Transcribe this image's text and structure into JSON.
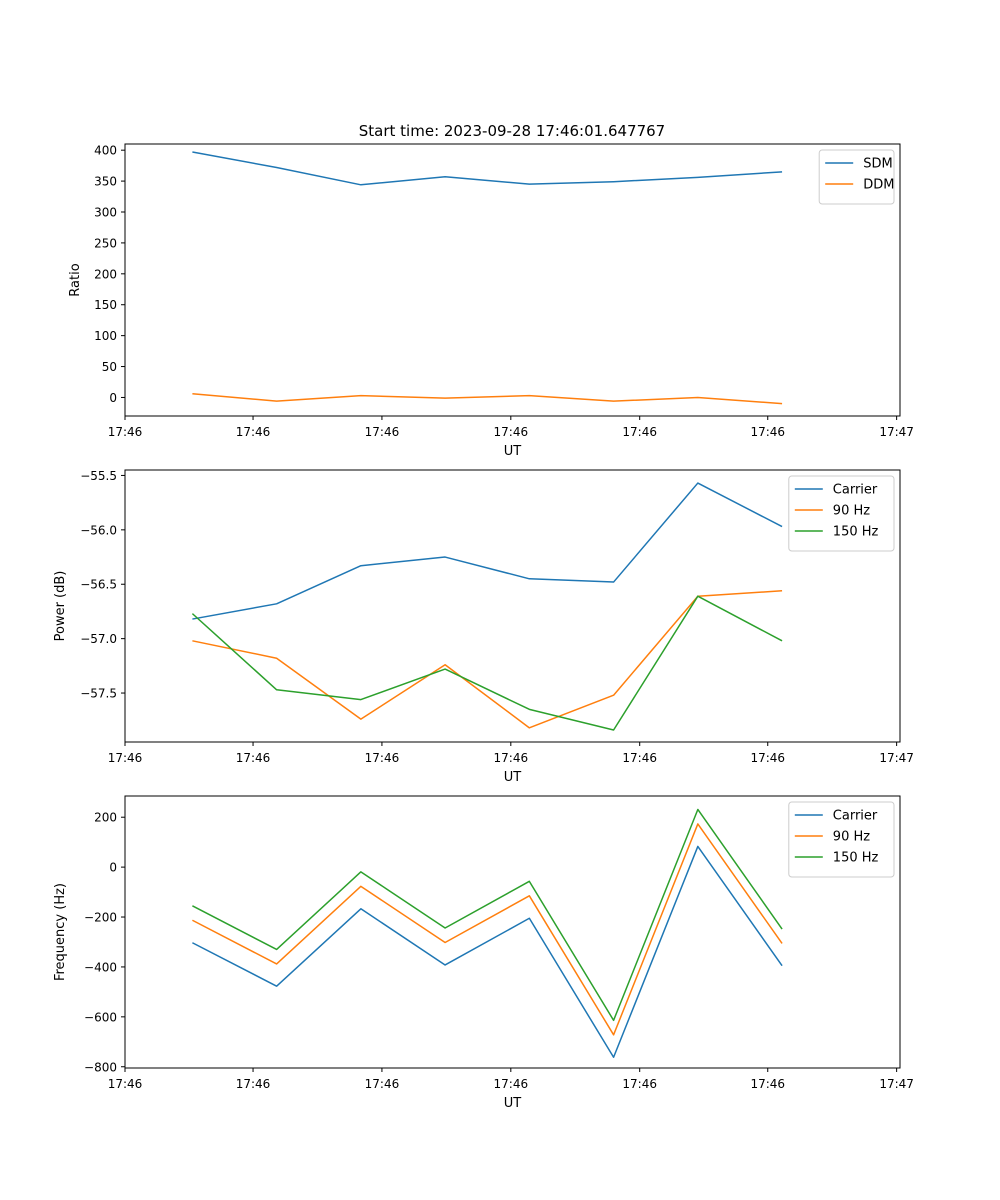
{
  "figure_title": "Start time: 2023-09-28 17:46:01.647767",
  "colors": {
    "blue": "#1f77b4",
    "orange": "#ff7f0e",
    "green": "#2ca02c",
    "axis": "#000000",
    "background": "#ffffff"
  },
  "chart_data": [
    {
      "type": "line",
      "title": "Start time: 2023-09-28 17:46:01.647767",
      "xlabel": "UT",
      "ylabel": "Ratio",
      "x": [
        1,
        2,
        3,
        4,
        5,
        6,
        7,
        8
      ],
      "xlim": [
        0.2,
        9.4
      ],
      "ylim": [
        -30,
        410
      ],
      "xticks": [
        {
          "value": 0.2,
          "label": "17:46"
        },
        {
          "value": 1.72,
          "label": "17:46"
        },
        {
          "value": 3.25,
          "label": "17:46"
        },
        {
          "value": 4.78,
          "label": "17:46"
        },
        {
          "value": 6.31,
          "label": "17:46"
        },
        {
          "value": 7.83,
          "label": "17:46"
        },
        {
          "value": 9.36,
          "label": "17:47"
        }
      ],
      "yticks": [
        0,
        50,
        100,
        150,
        200,
        250,
        300,
        350,
        400
      ],
      "ytick_labels": [
        "0",
        "50",
        "100",
        "150",
        "200",
        "250",
        "300",
        "350",
        "400"
      ],
      "legend_position": "top-right",
      "series": [
        {
          "name": "SDM",
          "color": "#1f77b4",
          "values": [
            397,
            372,
            344,
            357,
            345,
            349,
            356,
            365
          ]
        },
        {
          "name": "DDM",
          "color": "#ff7f0e",
          "values": [
            6,
            -6,
            3,
            -1,
            3,
            -6,
            0,
            -10
          ]
        }
      ]
    },
    {
      "type": "line",
      "title": "",
      "xlabel": "UT",
      "ylabel": "Power (dB)",
      "x": [
        1,
        2,
        3,
        4,
        5,
        6,
        7,
        8
      ],
      "xlim": [
        0.2,
        9.4
      ],
      "ylim": [
        -57.95,
        -55.45
      ],
      "xticks": [
        {
          "value": 0.2,
          "label": "17:46"
        },
        {
          "value": 1.72,
          "label": "17:46"
        },
        {
          "value": 3.25,
          "label": "17:46"
        },
        {
          "value": 4.78,
          "label": "17:46"
        },
        {
          "value": 6.31,
          "label": "17:46"
        },
        {
          "value": 7.83,
          "label": "17:46"
        },
        {
          "value": 9.36,
          "label": "17:47"
        }
      ],
      "yticks": [
        -57.5,
        -57.0,
        -56.5,
        -56.0,
        -55.5
      ],
      "ytick_labels": [
        "−57.5",
        "−57.0",
        "−56.5",
        "−56.0",
        "−55.5"
      ],
      "legend_position": "top-right",
      "series": [
        {
          "name": "Carrier",
          "color": "#1f77b4",
          "values": [
            -56.82,
            -56.68,
            -56.33,
            -56.25,
            -56.45,
            -56.48,
            -55.57,
            -55.97
          ]
        },
        {
          "name": "90 Hz",
          "color": "#ff7f0e",
          "values": [
            -57.02,
            -57.18,
            -57.74,
            -57.24,
            -57.82,
            -57.52,
            -56.61,
            -56.56
          ]
        },
        {
          "name": "150 Hz",
          "color": "#2ca02c",
          "values": [
            -56.77,
            -57.47,
            -57.56,
            -57.28,
            -57.65,
            -57.84,
            -56.61,
            -57.02
          ]
        }
      ]
    },
    {
      "type": "line",
      "title": "",
      "xlabel": "UT",
      "ylabel": "Frequency (Hz)",
      "x": [
        1,
        2,
        3,
        4,
        5,
        6,
        7,
        8
      ],
      "xlim": [
        0.2,
        9.4
      ],
      "ylim": [
        -805,
        285
      ],
      "xticks": [
        {
          "value": 0.2,
          "label": "17:46"
        },
        {
          "value": 1.72,
          "label": "17:46"
        },
        {
          "value": 3.25,
          "label": "17:46"
        },
        {
          "value": 4.78,
          "label": "17:46"
        },
        {
          "value": 6.31,
          "label": "17:46"
        },
        {
          "value": 7.83,
          "label": "17:46"
        },
        {
          "value": 9.36,
          "label": "17:47"
        }
      ],
      "yticks": [
        -800,
        -600,
        -400,
        -200,
        0,
        200
      ],
      "ytick_labels": [
        "−800",
        "−600",
        "−400",
        "−200",
        "0",
        "200"
      ],
      "legend_position": "top-right",
      "series": [
        {
          "name": "Carrier",
          "color": "#1f77b4",
          "values": [
            -303,
            -477,
            -167,
            -392,
            -205,
            -762,
            83,
            -395
          ]
        },
        {
          "name": "90 Hz",
          "color": "#ff7f0e",
          "values": [
            -213,
            -388,
            -77,
            -302,
            -115,
            -672,
            173,
            -306
          ]
        },
        {
          "name": "150 Hz",
          "color": "#2ca02c",
          "values": [
            -155,
            -330,
            -19,
            -244,
            -57,
            -614,
            231,
            -248
          ]
        }
      ]
    }
  ]
}
